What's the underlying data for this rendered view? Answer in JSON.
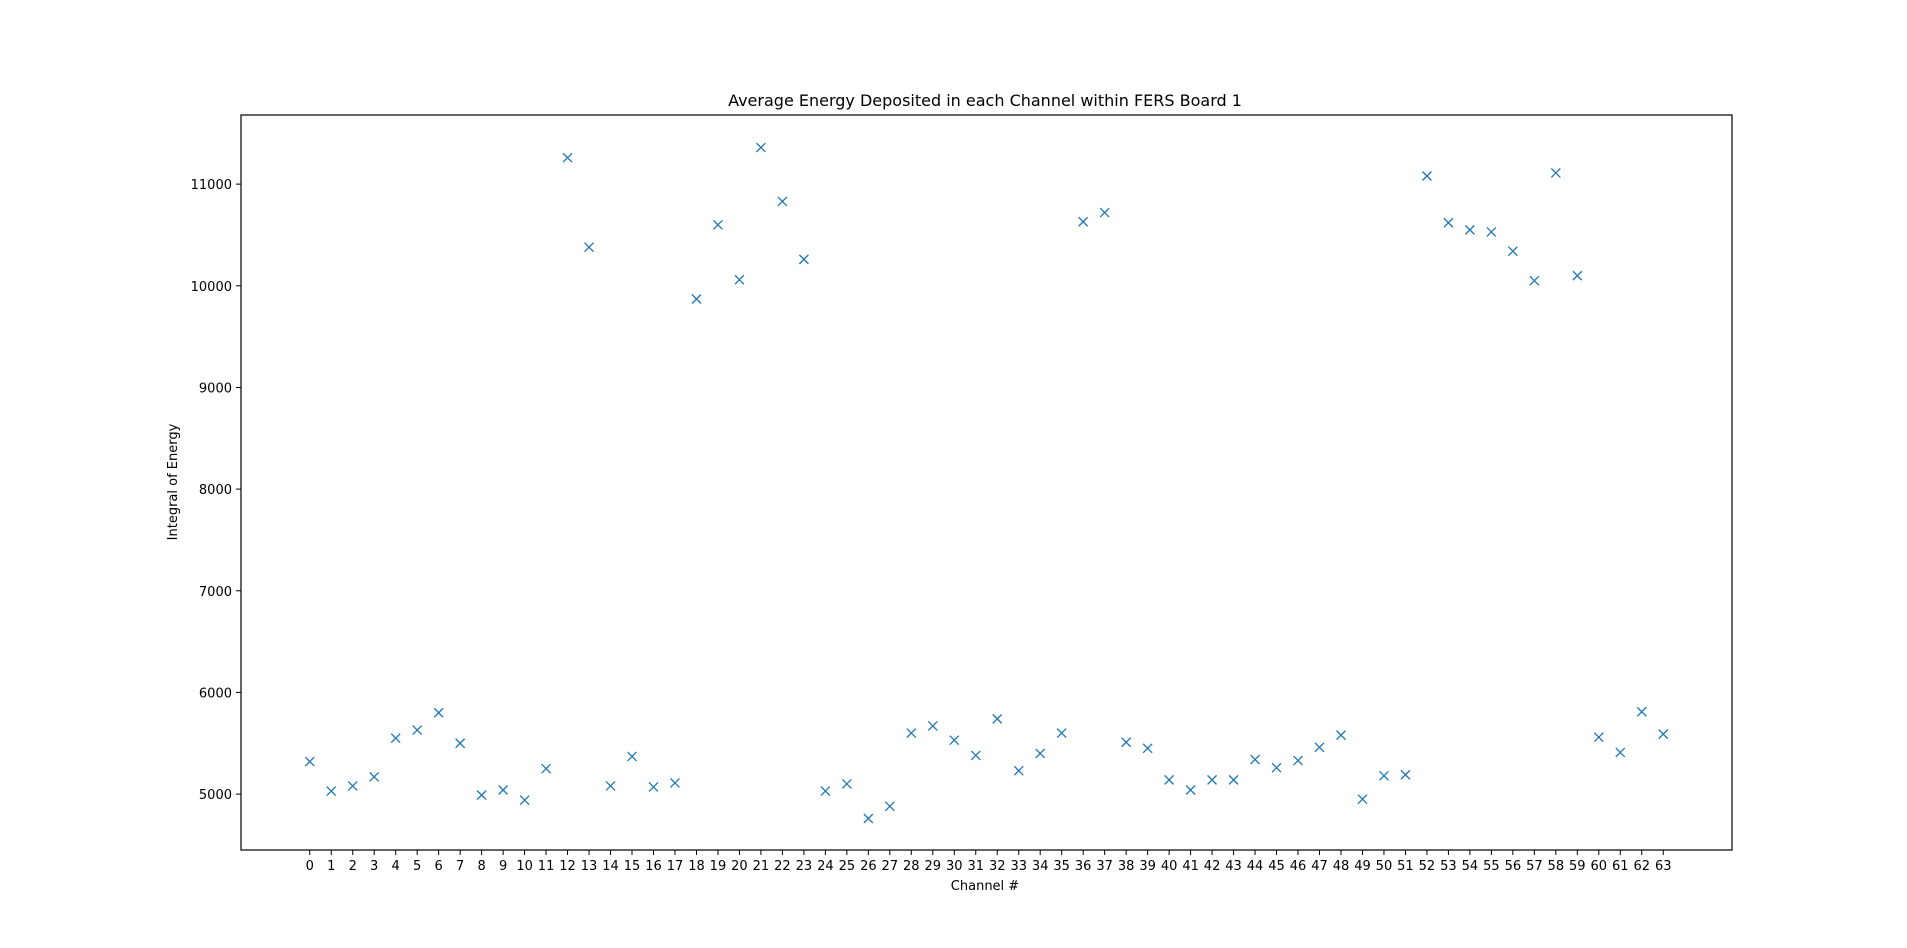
{
  "chart_data": {
    "type": "scatter",
    "title": "Average Energy Deposited in each Channel within FERS Board 1",
    "xlabel": "Channel #",
    "ylabel": "Integral of Energy",
    "marker": "x",
    "color": "#1f77b4",
    "grid": false,
    "xlim": [
      -3.2,
      66.2
    ],
    "ylim": [
      4450,
      11680
    ],
    "yticks": [
      5000,
      6000,
      7000,
      8000,
      9000,
      10000,
      11000
    ],
    "x": [
      0,
      1,
      2,
      3,
      4,
      5,
      6,
      7,
      8,
      9,
      10,
      11,
      12,
      13,
      14,
      15,
      16,
      17,
      18,
      19,
      20,
      21,
      22,
      23,
      24,
      25,
      26,
      27,
      28,
      29,
      30,
      31,
      32,
      33,
      34,
      35,
      36,
      37,
      38,
      39,
      40,
      41,
      42,
      43,
      44,
      45,
      46,
      47,
      48,
      49,
      50,
      51,
      52,
      53,
      54,
      55,
      56,
      57,
      58,
      59,
      60,
      61,
      62,
      63
    ],
    "xtick_labels": [
      "0",
      "1",
      "2",
      "3",
      "4",
      "5",
      "6",
      "7",
      "8",
      "9",
      "10",
      "11",
      "12",
      "13",
      "14",
      "15",
      "16",
      "17",
      "18",
      "19",
      "20",
      "21",
      "22",
      "23",
      "24",
      "25",
      "26",
      "27",
      "28",
      "29",
      "30",
      "31",
      "32",
      "33",
      "34",
      "35",
      "36",
      "37",
      "38",
      "39",
      "40",
      "41",
      "42",
      "43",
      "44",
      "45",
      "46",
      "47",
      "48",
      "49",
      "50",
      "51",
      "52",
      "53",
      "54",
      "55",
      "56",
      "57",
      "58",
      "59",
      "60",
      "61",
      "62",
      "63"
    ],
    "y": [
      5320,
      5030,
      5080,
      5170,
      5550,
      5630,
      5800,
      5500,
      4990,
      5040,
      4940,
      5250,
      11260,
      10380,
      5080,
      5370,
      5070,
      5110,
      9870,
      10600,
      10060,
      11360,
      10830,
      10260,
      5030,
      5100,
      4760,
      4880,
      5600,
      5670,
      5530,
      5380,
      5740,
      5230,
      5400,
      5600,
      10630,
      10720,
      5510,
      5450,
      5140,
      5040,
      5140,
      5140,
      5340,
      5260,
      5330,
      5460,
      5580,
      4950,
      5180,
      5190,
      11080,
      10620,
      10550,
      10530,
      10340,
      10050,
      11110,
      10100,
      5560,
      5410,
      5810,
      5590
    ]
  }
}
